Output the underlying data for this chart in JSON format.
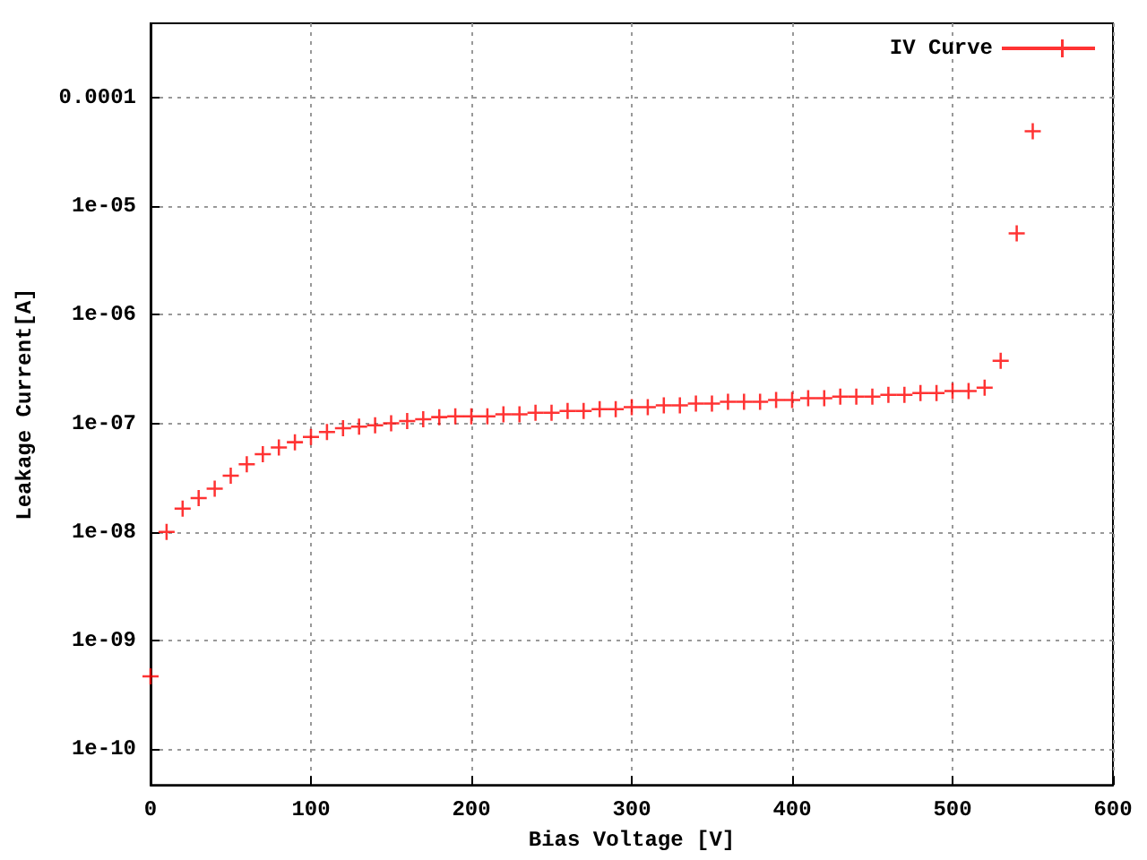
{
  "chart_data": {
    "type": "scatter",
    "xlabel": "Bias Voltage [V]",
    "ylabel": "Leakage Current[A]",
    "x": [
      0,
      10,
      20,
      30,
      40,
      50,
      60,
      70,
      80,
      90,
      100,
      110,
      120,
      130,
      140,
      150,
      160,
      170,
      180,
      190,
      200,
      210,
      220,
      230,
      240,
      250,
      260,
      270,
      280,
      290,
      300,
      310,
      320,
      330,
      340,
      350,
      360,
      370,
      380,
      390,
      400,
      410,
      420,
      430,
      440,
      450,
      460,
      470,
      480,
      490,
      500,
      510,
      520,
      530,
      540,
      550
    ],
    "series": [
      {
        "name": "IV Curve",
        "color": "#ff0000",
        "values": [
          4.7e-10,
          1e-08,
          1.64e-08,
          2.05e-08,
          2.5e-08,
          3.3e-08,
          4.2e-08,
          5.2e-08,
          6e-08,
          6.7e-08,
          7.5e-08,
          8.3e-08,
          9e-08,
          9.3e-08,
          9.6e-08,
          1e-07,
          1.05e-07,
          1.09e-07,
          1.14e-07,
          1.16e-07,
          1.16e-07,
          1.16e-07,
          1.21e-07,
          1.21e-07,
          1.25e-07,
          1.25e-07,
          1.3e-07,
          1.3e-07,
          1.35e-07,
          1.35e-07,
          1.41e-07,
          1.41e-07,
          1.46e-07,
          1.46e-07,
          1.52e-07,
          1.52e-07,
          1.58e-07,
          1.58e-07,
          1.58e-07,
          1.64e-07,
          1.64e-07,
          1.7e-07,
          1.7e-07,
          1.76e-07,
          1.76e-07,
          1.76e-07,
          1.83e-07,
          1.83e-07,
          1.9e-07,
          1.9e-07,
          1.98e-07,
          1.98e-07,
          2.13e-07,
          3.76e-07,
          5.6e-06,
          4.87e-05
        ]
      }
    ],
    "xlim": [
      0,
      600
    ],
    "xticks": [
      0,
      100,
      200,
      300,
      400,
      500,
      600
    ],
    "ylim": [
      4.7e-11,
      0.00048
    ],
    "yticks": [
      {
        "value": 1e-10,
        "label": "1e-10"
      },
      {
        "value": 1e-09,
        "label": "1e-09"
      },
      {
        "value": 1e-08,
        "label": "1e-08"
      },
      {
        "value": 1e-07,
        "label": "1e-07"
      },
      {
        "value": 1e-06,
        "label": "1e-06"
      },
      {
        "value": 1e-05,
        "label": "1e-05"
      },
      {
        "value": 0.0001,
        "label": "0.0001"
      }
    ],
    "log": "y",
    "grid": true,
    "legend": "top right",
    "marker": "cross"
  }
}
